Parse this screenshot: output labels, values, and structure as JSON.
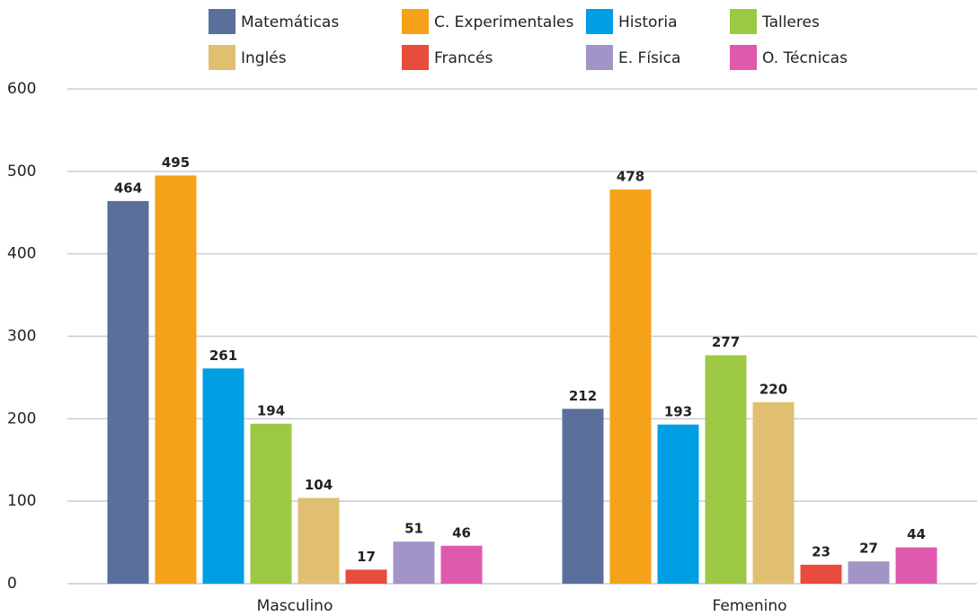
{
  "chart_data": {
    "type": "bar",
    "categories": [
      "Masculino",
      "Femenino"
    ],
    "series": [
      {
        "name": "Matemáticas",
        "color": "#5a6f9b",
        "values": [
          464,
          212
        ]
      },
      {
        "name": "C. Experimentales",
        "color": "#f5a21a",
        "values": [
          495,
          478
        ]
      },
      {
        "name": "Historia",
        "color": "#009fe3",
        "values": [
          261,
          193
        ]
      },
      {
        "name": "Talleres",
        "color": "#9dc843",
        "values": [
          194,
          277
        ]
      },
      {
        "name": "Inglés",
        "color": "#e0c070",
        "values": [
          104,
          220
        ]
      },
      {
        "name": "Francés",
        "color": "#e84c3d",
        "values": [
          17,
          23
        ]
      },
      {
        "name": "E. Física",
        "color": "#a394c8",
        "values": [
          51,
          27
        ]
      },
      {
        "name": "O. Técnicas",
        "color": "#df5aae",
        "values": [
          46,
          44
        ]
      }
    ],
    "ylim": [
      0,
      600
    ],
    "yticks": [
      0,
      100,
      200,
      300,
      400,
      500,
      600
    ],
    "grid": true
  }
}
